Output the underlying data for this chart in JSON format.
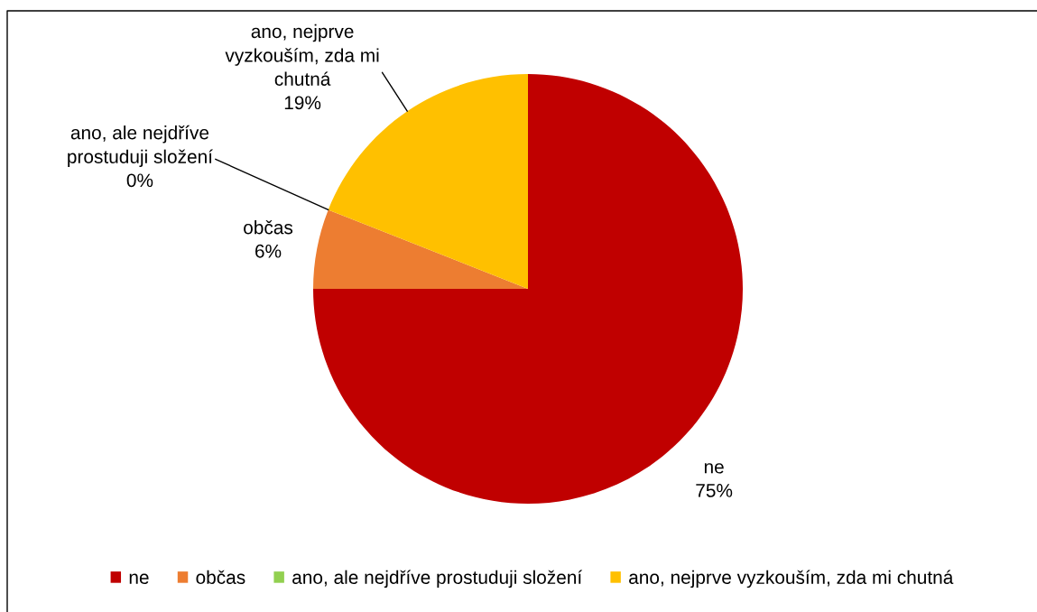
{
  "chart_data": {
    "type": "pie",
    "categories": [
      "ne",
      "občas",
      "ano, ale nejdříve prostuduji složení",
      "ano, nejprve vyzkouším, zda mi chutná"
    ],
    "values": [
      75,
      6,
      0,
      19
    ],
    "value_labels": [
      "75%",
      "6%",
      "0%",
      "19%"
    ],
    "colors": [
      "#c00000",
      "#ed7d31",
      "#92d050",
      "#ffc000"
    ],
    "legend": "bottom"
  }
}
